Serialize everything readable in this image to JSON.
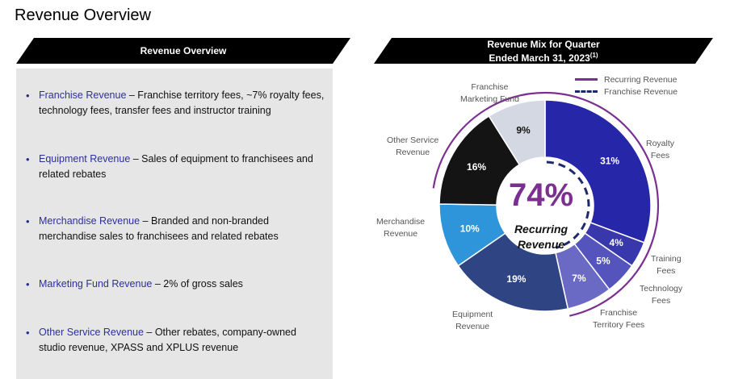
{
  "page": {
    "title": "Revenue Overview"
  },
  "left_panel": {
    "header": "Revenue Overview",
    "bullets": [
      {
        "term": "Franchise Revenue",
        "desc": " – Franchise territory fees, ~7% royalty fees, technology fees, transfer fees and instructor training"
      },
      {
        "term": "Equipment Revenue",
        "desc": " – Sales of equipment to franchisees and related rebates"
      },
      {
        "term": "Merchandise Revenue",
        "desc": " – Branded and non-branded merchandise sales to franchisees and related rebates"
      },
      {
        "term": "Marketing Fund Revenue",
        "desc": " – 2% of gross sales"
      },
      {
        "term": "Other Service Revenue",
        "desc": " – Other rebates, company-owned studio revenue, XPASS and XPLUS revenue"
      }
    ]
  },
  "right_panel": {
    "header_line1": "Revenue Mix for Quarter",
    "header_line2": "Ended March 31, 2023",
    "header_footnote": "(1)"
  },
  "chart_data": {
    "type": "pie",
    "donut": true,
    "title": "Revenue Mix for Quarter Ended March 31, 2023",
    "center_value": "74%",
    "center_label": "Recurring Revenue",
    "legend": [
      {
        "name": "Recurring Revenue",
        "style": "solid",
        "color": "#7b2f91"
      },
      {
        "name": "Franchise Revenue",
        "style": "dashed",
        "color": "#1f2a6e"
      }
    ],
    "slices": [
      {
        "label": "Royalty Fees",
        "value": 31,
        "value_label": "31%",
        "color": "#2626a8",
        "text_color": "#ffffff"
      },
      {
        "label": "Training Fees",
        "value": 4,
        "value_label": "4%",
        "color": "#3838ac",
        "text_color": "#ffffff"
      },
      {
        "label": "Technology Fees",
        "value": 5,
        "value_label": "5%",
        "color": "#5454bc",
        "text_color": "#ffffff"
      },
      {
        "label": "Franchise Territory Fees",
        "value": 7,
        "value_label": "7%",
        "color": "#6a6ac4",
        "text_color": "#ffffff"
      },
      {
        "label": "Equipment Revenue",
        "value": 19,
        "value_label": "19%",
        "color": "#2f4482",
        "text_color": "#ffffff"
      },
      {
        "label": "Merchandise Revenue",
        "value": 10,
        "value_label": "10%",
        "color": "#2e95da",
        "text_color": "#ffffff"
      },
      {
        "label": "Other Service Revenue",
        "value": 16,
        "value_label": "16%",
        "color": "#141414",
        "text_color": "#ffffff"
      },
      {
        "label": "Franchise Marketing Fund",
        "value": 9,
        "value_label": "9%",
        "color": "#d4d8e2",
        "text_color": "#111111"
      }
    ],
    "outer_labels": [
      {
        "line1": "Royalty",
        "line2": "Fees"
      },
      {
        "line1": "Training",
        "line2": "Fees"
      },
      {
        "line1": "Technology",
        "line2": "Fees"
      },
      {
        "line1": "Franchise",
        "line2": "Territory Fees"
      },
      {
        "line1": "Equipment",
        "line2": "Revenue"
      },
      {
        "line1": "Merchandise",
        "line2": "Revenue"
      },
      {
        "line1": "Other Service",
        "line2": "Revenue"
      },
      {
        "line1": "Franchise",
        "line2": "Marketing Fund"
      }
    ]
  }
}
